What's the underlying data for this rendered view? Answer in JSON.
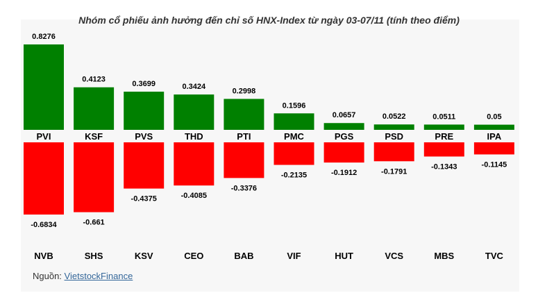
{
  "chart_data": {
    "type": "bar",
    "title": "Nhóm cổ phiếu ảnh hưởng đến chỉ số HNX-Index từ ngày 03-07/11 (tính theo điểm)",
    "positive": {
      "categories": [
        "PVI",
        "KSF",
        "PVS",
        "THD",
        "PTI",
        "PMC",
        "PGS",
        "PSD",
        "PRE",
        "IPA"
      ],
      "values": [
        0.8276,
        0.4123,
        0.3699,
        0.3424,
        0.2998,
        0.1596,
        0.0657,
        0.0522,
        0.0511,
        0.05
      ],
      "labels": [
        "0.8276",
        "0.4123",
        "0.3699",
        "0.3424",
        "0.2998",
        "0.1596",
        "0.0657",
        "0.0522",
        "0.0511",
        "0.05"
      ],
      "color": "#008000"
    },
    "negative": {
      "categories": [
        "NVB",
        "SHS",
        "KSV",
        "CEO",
        "BAB",
        "VIF",
        "HUT",
        "VCS",
        "MBS",
        "TVC"
      ],
      "values": [
        -0.6834,
        -0.661,
        -0.4375,
        -0.4085,
        -0.3376,
        -0.2135,
        -0.1912,
        -0.1791,
        -0.1343,
        -0.1145
      ],
      "labels": [
        "-0.6834",
        "-0.661",
        "-0.4375",
        "-0.4085",
        "-0.3376",
        "-0.2135",
        "-0.1912",
        "-0.1791",
        "-0.1343",
        "-0.1145"
      ],
      "color": "#ff0000"
    }
  },
  "source": {
    "prefix": "Nguồn: ",
    "link": "VietstockFinance"
  }
}
